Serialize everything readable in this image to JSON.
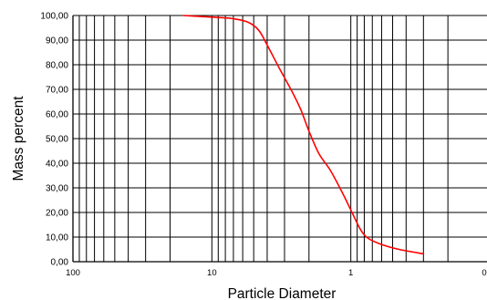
{
  "chart_data": {
    "type": "line",
    "title": "",
    "xlabel": "Particle Diameter",
    "ylabel": "Mass percent",
    "x_scale": "log",
    "x_reversed": true,
    "xlim": [
      100,
      0.1
    ],
    "ylim": [
      0,
      100
    ],
    "grid": true,
    "x_tick_labels": [
      {
        "value": 100,
        "label": "100"
      },
      {
        "value": 10,
        "label": "10"
      },
      {
        "value": 1,
        "label": "1"
      },
      {
        "value": 0.1,
        "label": "0"
      }
    ],
    "y_tick_labels": [
      "0,00",
      "10,00",
      "20,00",
      "30,00",
      "40,00",
      "50,00",
      "60,00",
      "70,00",
      "80,00",
      "90,00",
      "100,00"
    ],
    "series": [
      {
        "color": "#ff0000",
        "points": [
          {
            "x": 16.0,
            "y": 100.0
          },
          {
            "x": 12.0,
            "y": 99.6
          },
          {
            "x": 9.0,
            "y": 99.2
          },
          {
            "x": 7.0,
            "y": 98.7
          },
          {
            "x": 5.5,
            "y": 97.3
          },
          {
            "x": 4.6,
            "y": 94.0
          },
          {
            "x": 4.0,
            "y": 88.0
          },
          {
            "x": 3.3,
            "y": 79.0
          },
          {
            "x": 2.7,
            "y": 70.0
          },
          {
            "x": 2.3,
            "y": 62.0
          },
          {
            "x": 2.0,
            "y": 53.0
          },
          {
            "x": 1.7,
            "y": 44.0
          },
          {
            "x": 1.4,
            "y": 37.0
          },
          {
            "x": 1.15,
            "y": 28.0
          },
          {
            "x": 0.98,
            "y": 20.0
          },
          {
            "x": 0.85,
            "y": 13.0
          },
          {
            "x": 0.75,
            "y": 9.5
          },
          {
            "x": 0.6,
            "y": 7.0
          },
          {
            "x": 0.45,
            "y": 5.0
          },
          {
            "x": 0.3,
            "y": 3.2
          }
        ]
      }
    ]
  }
}
